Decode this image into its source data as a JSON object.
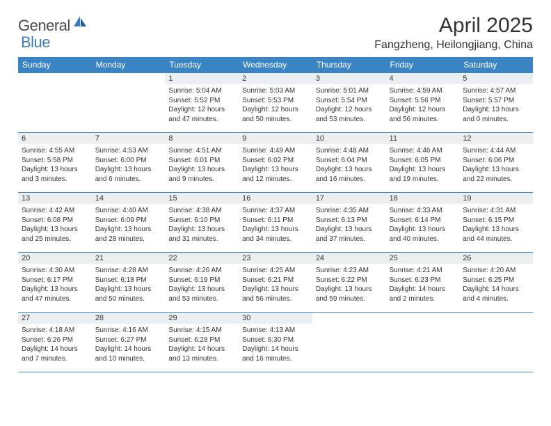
{
  "brand": {
    "part1": "General",
    "part2": "Blue"
  },
  "title": "April 2025",
  "location": "Fangzheng, Heilongjiang, China",
  "colors": {
    "header_bg": "#3b84c4",
    "header_text": "#ffffff",
    "daynum_bg": "#eceff1",
    "border": "#3b84c4",
    "text": "#333333",
    "logo_gray": "#4a4a4a",
    "logo_blue": "#3b7bbf",
    "page_bg": "#ffffff"
  },
  "weekdays": [
    "Sunday",
    "Monday",
    "Tuesday",
    "Wednesday",
    "Thursday",
    "Friday",
    "Saturday"
  ],
  "weeks": [
    [
      {
        "n": "",
        "sr": "",
        "ss": "",
        "dl": ""
      },
      {
        "n": "",
        "sr": "",
        "ss": "",
        "dl": ""
      },
      {
        "n": "1",
        "sr": "Sunrise: 5:04 AM",
        "ss": "Sunset: 5:52 PM",
        "dl": "Daylight: 12 hours and 47 minutes."
      },
      {
        "n": "2",
        "sr": "Sunrise: 5:03 AM",
        "ss": "Sunset: 5:53 PM",
        "dl": "Daylight: 12 hours and 50 minutes."
      },
      {
        "n": "3",
        "sr": "Sunrise: 5:01 AM",
        "ss": "Sunset: 5:54 PM",
        "dl": "Daylight: 12 hours and 53 minutes."
      },
      {
        "n": "4",
        "sr": "Sunrise: 4:59 AM",
        "ss": "Sunset: 5:56 PM",
        "dl": "Daylight: 12 hours and 56 minutes."
      },
      {
        "n": "5",
        "sr": "Sunrise: 4:57 AM",
        "ss": "Sunset: 5:57 PM",
        "dl": "Daylight: 13 hours and 0 minutes."
      }
    ],
    [
      {
        "n": "6",
        "sr": "Sunrise: 4:55 AM",
        "ss": "Sunset: 5:58 PM",
        "dl": "Daylight: 13 hours and 3 minutes."
      },
      {
        "n": "7",
        "sr": "Sunrise: 4:53 AM",
        "ss": "Sunset: 6:00 PM",
        "dl": "Daylight: 13 hours and 6 minutes."
      },
      {
        "n": "8",
        "sr": "Sunrise: 4:51 AM",
        "ss": "Sunset: 6:01 PM",
        "dl": "Daylight: 13 hours and 9 minutes."
      },
      {
        "n": "9",
        "sr": "Sunrise: 4:49 AM",
        "ss": "Sunset: 6:02 PM",
        "dl": "Daylight: 13 hours and 12 minutes."
      },
      {
        "n": "10",
        "sr": "Sunrise: 4:48 AM",
        "ss": "Sunset: 6:04 PM",
        "dl": "Daylight: 13 hours and 16 minutes."
      },
      {
        "n": "11",
        "sr": "Sunrise: 4:46 AM",
        "ss": "Sunset: 6:05 PM",
        "dl": "Daylight: 13 hours and 19 minutes."
      },
      {
        "n": "12",
        "sr": "Sunrise: 4:44 AM",
        "ss": "Sunset: 6:06 PM",
        "dl": "Daylight: 13 hours and 22 minutes."
      }
    ],
    [
      {
        "n": "13",
        "sr": "Sunrise: 4:42 AM",
        "ss": "Sunset: 6:08 PM",
        "dl": "Daylight: 13 hours and 25 minutes."
      },
      {
        "n": "14",
        "sr": "Sunrise: 4:40 AM",
        "ss": "Sunset: 6:09 PM",
        "dl": "Daylight: 13 hours and 28 minutes."
      },
      {
        "n": "15",
        "sr": "Sunrise: 4:38 AM",
        "ss": "Sunset: 6:10 PM",
        "dl": "Daylight: 13 hours and 31 minutes."
      },
      {
        "n": "16",
        "sr": "Sunrise: 4:37 AM",
        "ss": "Sunset: 6:11 PM",
        "dl": "Daylight: 13 hours and 34 minutes."
      },
      {
        "n": "17",
        "sr": "Sunrise: 4:35 AM",
        "ss": "Sunset: 6:13 PM",
        "dl": "Daylight: 13 hours and 37 minutes."
      },
      {
        "n": "18",
        "sr": "Sunrise: 4:33 AM",
        "ss": "Sunset: 6:14 PM",
        "dl": "Daylight: 13 hours and 40 minutes."
      },
      {
        "n": "19",
        "sr": "Sunrise: 4:31 AM",
        "ss": "Sunset: 6:15 PM",
        "dl": "Daylight: 13 hours and 44 minutes."
      }
    ],
    [
      {
        "n": "20",
        "sr": "Sunrise: 4:30 AM",
        "ss": "Sunset: 6:17 PM",
        "dl": "Daylight: 13 hours and 47 minutes."
      },
      {
        "n": "21",
        "sr": "Sunrise: 4:28 AM",
        "ss": "Sunset: 6:18 PM",
        "dl": "Daylight: 13 hours and 50 minutes."
      },
      {
        "n": "22",
        "sr": "Sunrise: 4:26 AM",
        "ss": "Sunset: 6:19 PM",
        "dl": "Daylight: 13 hours and 53 minutes."
      },
      {
        "n": "23",
        "sr": "Sunrise: 4:25 AM",
        "ss": "Sunset: 6:21 PM",
        "dl": "Daylight: 13 hours and 56 minutes."
      },
      {
        "n": "24",
        "sr": "Sunrise: 4:23 AM",
        "ss": "Sunset: 6:22 PM",
        "dl": "Daylight: 13 hours and 59 minutes."
      },
      {
        "n": "25",
        "sr": "Sunrise: 4:21 AM",
        "ss": "Sunset: 6:23 PM",
        "dl": "Daylight: 14 hours and 2 minutes."
      },
      {
        "n": "26",
        "sr": "Sunrise: 4:20 AM",
        "ss": "Sunset: 6:25 PM",
        "dl": "Daylight: 14 hours and 4 minutes."
      }
    ],
    [
      {
        "n": "27",
        "sr": "Sunrise: 4:18 AM",
        "ss": "Sunset: 6:26 PM",
        "dl": "Daylight: 14 hours and 7 minutes."
      },
      {
        "n": "28",
        "sr": "Sunrise: 4:16 AM",
        "ss": "Sunset: 6:27 PM",
        "dl": "Daylight: 14 hours and 10 minutes."
      },
      {
        "n": "29",
        "sr": "Sunrise: 4:15 AM",
        "ss": "Sunset: 6:28 PM",
        "dl": "Daylight: 14 hours and 13 minutes."
      },
      {
        "n": "30",
        "sr": "Sunrise: 4:13 AM",
        "ss": "Sunset: 6:30 PM",
        "dl": "Daylight: 14 hours and 16 minutes."
      },
      {
        "n": "",
        "sr": "",
        "ss": "",
        "dl": ""
      },
      {
        "n": "",
        "sr": "",
        "ss": "",
        "dl": ""
      },
      {
        "n": "",
        "sr": "",
        "ss": "",
        "dl": ""
      }
    ]
  ]
}
